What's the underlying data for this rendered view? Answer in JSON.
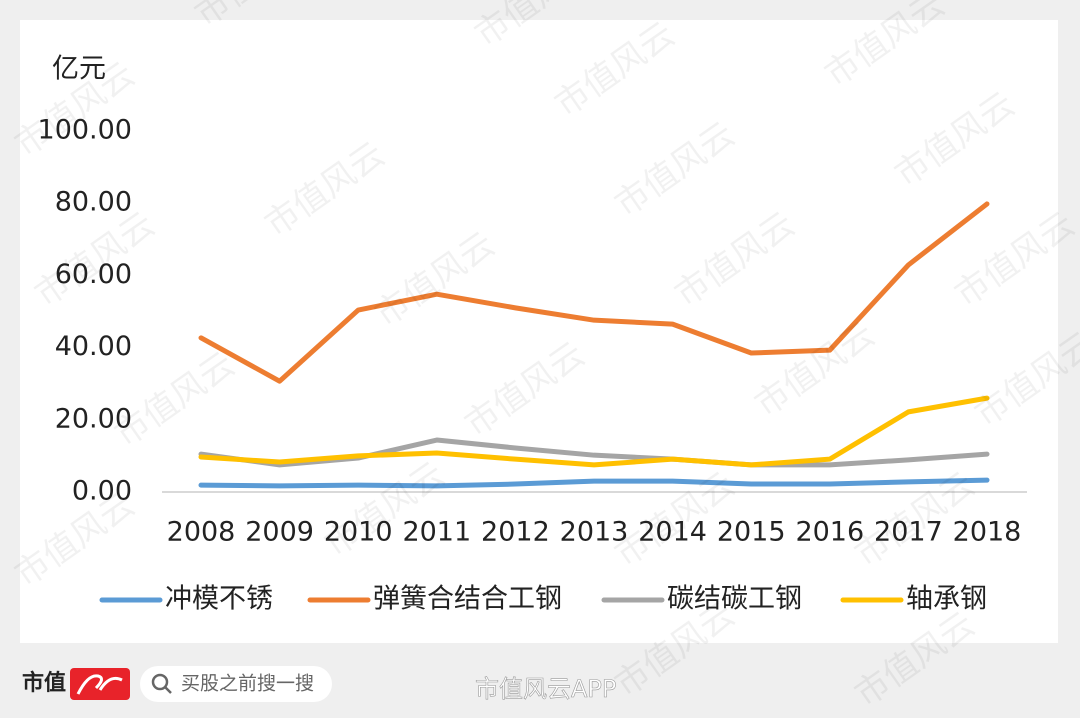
{
  "chart_data": {
    "type": "line",
    "y_unit": "亿元",
    "categories": [
      "2008",
      "2009",
      "2010",
      "2011",
      "2012",
      "2013",
      "2014",
      "2015",
      "2016",
      "2017",
      "2018"
    ],
    "series": [
      {
        "name": "冲模不锈",
        "color": "#5b9bd5",
        "values": [
          1.9,
          1.7,
          1.9,
          1.7,
          2.2,
          3.0,
          3.0,
          2.2,
          2.2,
          2.8,
          3.3
        ]
      },
      {
        "name": "弹簧合结合工钢",
        "color": "#ed7d31",
        "values": [
          42.7,
          30.7,
          50.4,
          54.8,
          51.0,
          47.6,
          46.5,
          38.5,
          39.3,
          62.9,
          79.8
        ]
      },
      {
        "name": "碳结碳工钢",
        "color": "#a5a5a5",
        "values": [
          10.5,
          7.5,
          9.4,
          14.4,
          12.2,
          10.2,
          9.1,
          7.5,
          7.5,
          8.9,
          10.5
        ]
      },
      {
        "name": "轴承钢",
        "color": "#ffc000",
        "values": [
          9.7,
          8.3,
          10.0,
          10.8,
          9.1,
          7.5,
          9.1,
          7.5,
          9.1,
          22.2,
          26.0
        ]
      }
    ],
    "ylim": [
      0,
      100
    ],
    "yticks": [
      {
        "value": 0,
        "label": "0.00"
      },
      {
        "value": 20,
        "label": "20.00"
      },
      {
        "value": 40,
        "label": "40.00"
      },
      {
        "value": 60,
        "label": "60.00"
      },
      {
        "value": 80,
        "label": "80.00"
      },
      {
        "value": 100,
        "label": "100.00"
      }
    ],
    "grid": false
  },
  "watermark": "市值风云",
  "footer": {
    "brand": "市值",
    "search_placeholder": "买股之前搜一搜",
    "watermark": "市值风云APP"
  }
}
